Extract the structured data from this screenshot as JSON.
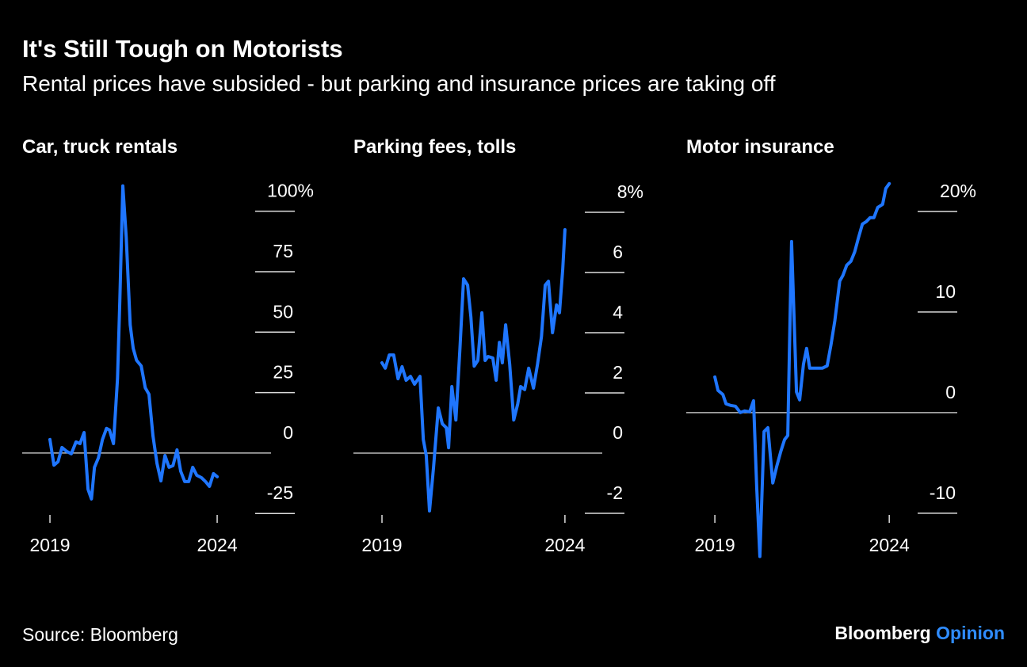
{
  "title": "It's Still Tough on Motorists",
  "subtitle": "Rental prices have subsided - but parking and insurance prices are taking off",
  "source": "Source: Bloomberg",
  "brand": {
    "name": "Bloomberg",
    "suffix": "Opinion"
  },
  "chart_data": [
    {
      "type": "line",
      "title": "Car, truck rentals",
      "color": "#1f76ff",
      "x": [
        2019.0,
        2019.12,
        2019.24,
        2019.36,
        2019.5,
        2019.64,
        2019.78,
        2019.9,
        2020.02,
        2020.14,
        2020.24,
        2020.33,
        2020.45,
        2020.57,
        2020.69,
        2020.78,
        2020.9,
        2021.02,
        2021.09,
        2021.18,
        2021.28,
        2021.4,
        2021.49,
        2021.59,
        2021.73,
        2021.85,
        2021.96,
        2022.08,
        2022.2,
        2022.32,
        2022.44,
        2022.56,
        2022.68,
        2022.8,
        2022.91,
        2023.03,
        2023.15,
        2023.27,
        2023.39,
        2023.53,
        2023.65,
        2023.77,
        2023.89,
        2024.0
      ],
      "values": [
        5.6,
        -5,
        -3.6,
        2.3,
        0.7,
        -0.3,
        4.6,
        3.9,
        8.5,
        -15,
        -19,
        -5.9,
        -2,
        5.6,
        10.2,
        9.5,
        3.9,
        30.8,
        62.9,
        110.5,
        89.2,
        53,
        43.3,
        38.4,
        36,
        27,
        24.3,
        7.2,
        -4.3,
        -11.5,
        -1,
        -5.9,
        -5.2,
        1.3,
        -7.5,
        -11.8,
        -11.8,
        -5.9,
        -9.2,
        -10.2,
        -11.8,
        -13.8,
        -8.5,
        -9.8
      ],
      "xlim": [
        2018.17,
        2025.61
      ],
      "xticks": [
        2019,
        2024
      ],
      "ylim": [
        -43.6,
        112
      ],
      "yticks": [
        -25,
        0,
        25,
        50,
        75,
        {
          "value": 100,
          "label": "100%"
        }
      ]
    },
    {
      "type": "line",
      "title": "Parking fees, tolls",
      "color": "#1f76ff",
      "x": [
        2019.0,
        2019.09,
        2019.2,
        2019.32,
        2019.44,
        2019.55,
        2019.66,
        2019.78,
        2019.89,
        2020.04,
        2020.13,
        2020.21,
        2020.3,
        2020.41,
        2020.54,
        2020.65,
        2020.76,
        2020.82,
        2020.91,
        2021.02,
        2021.13,
        2021.23,
        2021.34,
        2021.43,
        2021.52,
        2021.62,
        2021.73,
        2021.82,
        2021.9,
        2022.03,
        2022.12,
        2022.21,
        2022.29,
        2022.38,
        2022.49,
        2022.6,
        2022.71,
        2022.79,
        2022.9,
        2023.01,
        2023.14,
        2023.25,
        2023.36,
        2023.46,
        2023.55,
        2023.66,
        2023.77,
        2023.85,
        2023.94,
        2024.0
      ],
      "values": [
        3.0,
        2.82,
        3.26,
        3.26,
        2.47,
        2.87,
        2.42,
        2.55,
        2.29,
        2.55,
        0.45,
        -0.08,
        -1.92,
        -0.47,
        1.5,
        0.97,
        0.84,
        0.18,
        2.21,
        1.1,
        3.47,
        5.79,
        5.58,
        4.53,
        2.89,
        3.08,
        4.66,
        3.08,
        3.21,
        3.16,
        2.42,
        3.68,
        3.0,
        4.26,
        2.95,
        1.1,
        1.63,
        2.21,
        2.11,
        2.82,
        2.16,
        2.95,
        3.87,
        5.58,
        5.71,
        4.0,
        4.92,
        4.66,
        6.1,
        7.42
      ],
      "xlim": [
        2018.22,
        2025.02
      ],
      "xticks": [
        2019,
        2024
      ],
      "ylim": [
        -3.5,
        9
      ],
      "yticks": [
        -2,
        0,
        2,
        4,
        6,
        {
          "value": 8,
          "label": "8%"
        }
      ]
    },
    {
      "type": "line",
      "title": "Motor insurance",
      "color": "#1f76ff",
      "x": [
        2019.0,
        2019.09,
        2019.23,
        2019.32,
        2019.45,
        2019.59,
        2019.73,
        2019.86,
        2020.0,
        2020.11,
        2020.2,
        2020.29,
        2020.41,
        2020.52,
        2020.66,
        2020.77,
        2020.89,
        2021.0,
        2021.09,
        2021.2,
        2021.34,
        2021.43,
        2021.54,
        2021.63,
        2021.72,
        2021.86,
        2021.97,
        2022.08,
        2022.22,
        2022.33,
        2022.44,
        2022.58,
        2022.67,
        2022.78,
        2022.9,
        2023.01,
        2023.12,
        2023.23,
        2023.34,
        2023.45,
        2023.56,
        2023.67,
        2023.81,
        2023.9,
        2024.0
      ],
      "values": [
        3.54,
        2.2,
        1.8,
        0.87,
        0.71,
        0.63,
        0,
        0.16,
        0.08,
        1.18,
        -7.4,
        -14.3,
        -1.89,
        -1.5,
        -7,
        -5.4,
        -3.86,
        -2.68,
        -2.28,
        17,
        2.05,
        1.26,
        4.8,
        6.38,
        4.41,
        4.41,
        4.41,
        4.41,
        4.65,
        6.77,
        9.13,
        13.07,
        13.62,
        14.65,
        15.04,
        15.98,
        17.4,
        18.74,
        18.98,
        19.37,
        19.37,
        20.39,
        20.7,
        22.28,
        22.76
      ],
      "xlim": [
        2018.18,
        2025.95
      ],
      "xticks": [
        2019,
        2024
      ],
      "ylim": [
        -14.5,
        22.9
      ],
      "yticks": [
        -10,
        0,
        10,
        {
          "value": 20,
          "label": "20%"
        }
      ]
    }
  ]
}
